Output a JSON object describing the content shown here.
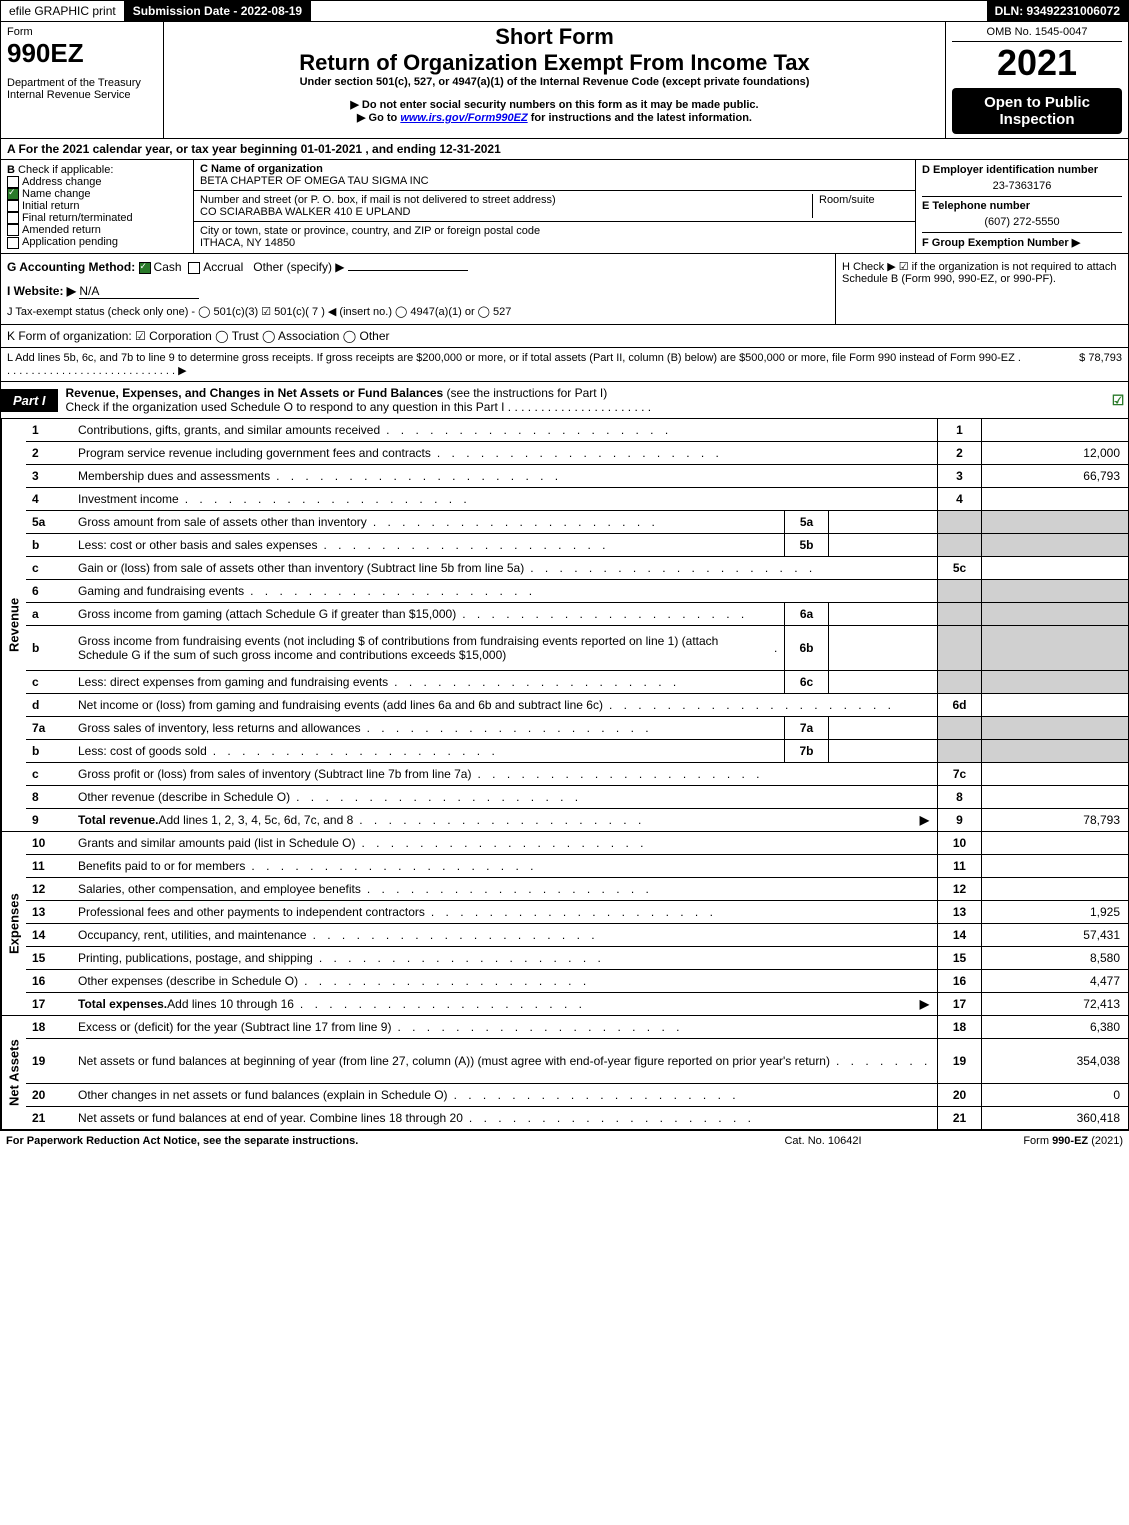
{
  "topbar": {
    "efile": "efile GRAPHIC print",
    "submission": "Submission Date - 2022-08-19",
    "dln": "DLN: 93492231006072"
  },
  "header": {
    "form_label": "Form",
    "form_number": "990EZ",
    "dept": "Department of the Treasury",
    "irs": "Internal Revenue Service",
    "short_form": "Short Form",
    "title": "Return of Organization Exempt From Income Tax",
    "subtitle": "Under section 501(c), 527, or 4947(a)(1) of the Internal Revenue Code (except private foundations)",
    "warn": "▶ Do not enter social security numbers on this form as it may be made public.",
    "goto": "▶ Go to www.irs.gov/Form990EZ for instructions and the latest information.",
    "omb": "OMB No. 1545-0047",
    "year": "2021",
    "open": "Open to Public Inspection"
  },
  "section_a": "A  For the 2021 calendar year, or tax year beginning 01-01-2021 , and ending 12-31-2021",
  "section_b": {
    "label": "B",
    "sublabel": "Check if applicable:",
    "opts": [
      {
        "text": "Address change",
        "checked": false
      },
      {
        "text": "Name change",
        "checked": true
      },
      {
        "text": "Initial return",
        "checked": false
      },
      {
        "text": "Final return/terminated",
        "checked": false
      },
      {
        "text": "Amended return",
        "checked": false
      },
      {
        "text": "Application pending",
        "checked": false
      }
    ]
  },
  "section_c": {
    "name_label": "C Name of organization",
    "name": "BETA CHAPTER OF OMEGA TAU SIGMA INC",
    "addr_label": "Number and street (or P. O. box, if mail is not delivered to street address)",
    "addr": "CO SCIARABBA WALKER 410 E UPLAND",
    "room_label": "Room/suite",
    "city_label": "City or town, state or province, country, and ZIP or foreign postal code",
    "city": "ITHACA, NY  14850"
  },
  "section_d": {
    "ein_label": "D Employer identification number",
    "ein": "23-7363176",
    "phone_label": "E Telephone number",
    "phone": "(607) 272-5550",
    "group_label": "F Group Exemption Number  ▶"
  },
  "section_g": {
    "label": "G Accounting Method:",
    "cash": "Cash",
    "accrual": "Accrual",
    "other": "Other (specify) ▶"
  },
  "section_h": "H    Check ▶ ☑ if the organization is not required to attach Schedule B (Form 990, 990-EZ, or 990-PF).",
  "section_i": {
    "label": "I Website: ▶",
    "value": "N/A"
  },
  "section_j": "J Tax-exempt status (check only one) - ◯ 501(c)(3) ☑ 501(c)( 7 ) ◀ (insert no.) ◯ 4947(a)(1) or ◯ 527",
  "section_k": "K Form of organization:   ☑ Corporation   ◯ Trust   ◯ Association   ◯ Other",
  "section_l": {
    "text": "L Add lines 5b, 6c, and 7b to line 9 to determine gross receipts. If gross receipts are $200,000 or more, or if total assets (Part II, column (B) below) are $500,000 or more, file Form 990 instead of Form 990-EZ . . . . . . . . . . . . . . . . . . . . . . . . . . . . . ▶",
    "amount": "$ 78,793"
  },
  "part1": {
    "tab": "Part I",
    "title_bold": "Revenue, Expenses, and Changes in Net Assets or Fund Balances",
    "title_rest": " (see the instructions for Part I)",
    "subtitle": "Check if the organization used Schedule O to respond to any question in this Part I . . . . . . . . . . . . . . . . . . . . . .",
    "check": "☑"
  },
  "sections": [
    {
      "label": "Revenue",
      "lines": [
        {
          "num": "1",
          "desc": "Contributions, gifts, grants, and similar amounts received",
          "box": "1",
          "amt": ""
        },
        {
          "num": "2",
          "desc": "Program service revenue including government fees and contracts",
          "box": "2",
          "amt": "12,000"
        },
        {
          "num": "3",
          "desc": "Membership dues and assessments",
          "box": "3",
          "amt": "66,793"
        },
        {
          "num": "4",
          "desc": "Investment income",
          "box": "4",
          "amt": ""
        },
        {
          "num": "5a",
          "desc": "Gross amount from sale of assets other than inventory",
          "subbox": "5a",
          "shade": true
        },
        {
          "num": "b",
          "desc": "Less: cost or other basis and sales expenses",
          "subbox": "5b",
          "shade": true
        },
        {
          "num": "c",
          "desc": "Gain or (loss) from sale of assets other than inventory (Subtract line 5b from line 5a)",
          "box": "5c",
          "amt": ""
        },
        {
          "num": "6",
          "desc": "Gaming and fundraising events",
          "shade_full": true
        },
        {
          "num": "a",
          "desc": "Gross income from gaming (attach Schedule G if greater than $15,000)",
          "subbox": "6a",
          "shade": true
        },
        {
          "num": "b",
          "desc": "Gross income from fundraising events (not including $                of contributions from fundraising events reported on line 1) (attach Schedule G if the sum of such gross income and contributions exceeds $15,000)",
          "subbox": "6b",
          "shade": true,
          "tall": true
        },
        {
          "num": "c",
          "desc": "Less: direct expenses from gaming and fundraising events",
          "subbox": "6c",
          "shade": true
        },
        {
          "num": "d",
          "desc": "Net income or (loss) from gaming and fundraising events (add lines 6a and 6b and subtract line 6c)",
          "box": "6d",
          "amt": ""
        },
        {
          "num": "7a",
          "desc": "Gross sales of inventory, less returns and allowances",
          "subbox": "7a",
          "shade": true
        },
        {
          "num": "b",
          "desc": "Less: cost of goods sold",
          "subbox": "7b",
          "shade": true
        },
        {
          "num": "c",
          "desc": "Gross profit or (loss) from sales of inventory (Subtract line 7b from line 7a)",
          "box": "7c",
          "amt": ""
        },
        {
          "num": "8",
          "desc": "Other revenue (describe in Schedule O)",
          "box": "8",
          "amt": ""
        },
        {
          "num": "9",
          "desc_bold": "Total revenue.",
          "desc": " Add lines 1, 2, 3, 4, 5c, 6d, 7c, and 8",
          "arrow": true,
          "box": "9",
          "amt": "78,793"
        }
      ]
    },
    {
      "label": "Expenses",
      "lines": [
        {
          "num": "10",
          "desc": "Grants and similar amounts paid (list in Schedule O)",
          "box": "10",
          "amt": ""
        },
        {
          "num": "11",
          "desc": "Benefits paid to or for members",
          "box": "11",
          "amt": ""
        },
        {
          "num": "12",
          "desc": "Salaries, other compensation, and employee benefits",
          "box": "12",
          "amt": ""
        },
        {
          "num": "13",
          "desc": "Professional fees and other payments to independent contractors",
          "box": "13",
          "amt": "1,925"
        },
        {
          "num": "14",
          "desc": "Occupancy, rent, utilities, and maintenance",
          "box": "14",
          "amt": "57,431"
        },
        {
          "num": "15",
          "desc": "Printing, publications, postage, and shipping",
          "box": "15",
          "amt": "8,580"
        },
        {
          "num": "16",
          "desc": "Other expenses (describe in Schedule O)",
          "box": "16",
          "amt": "4,477"
        },
        {
          "num": "17",
          "desc_bold": "Total expenses.",
          "desc": " Add lines 10 through 16",
          "arrow": true,
          "box": "17",
          "amt": "72,413"
        }
      ]
    },
    {
      "label": "Net Assets",
      "lines": [
        {
          "num": "18",
          "desc": "Excess or (deficit) for the year (Subtract line 17 from line 9)",
          "box": "18",
          "amt": "6,380"
        },
        {
          "num": "19",
          "desc": "Net assets or fund balances at beginning of year (from line 27, column (A)) (must agree with end-of-year figure reported on prior year's return)",
          "box": "19",
          "amt": "354,038",
          "tall": true
        },
        {
          "num": "20",
          "desc": "Other changes in net assets or fund balances (explain in Schedule O)",
          "box": "20",
          "amt": "0"
        },
        {
          "num": "21",
          "desc": "Net assets or fund balances at end of year. Combine lines 18 through 20",
          "box": "21",
          "amt": "360,418"
        }
      ]
    }
  ],
  "footer": {
    "left": "For Paperwork Reduction Act Notice, see the separate instructions.",
    "mid": "Cat. No. 10642I",
    "right": "Form 990-EZ (2021)"
  }
}
